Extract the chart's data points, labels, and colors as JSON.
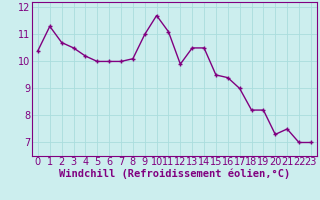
{
  "x": [
    0,
    1,
    2,
    3,
    4,
    5,
    6,
    7,
    8,
    9,
    10,
    11,
    12,
    13,
    14,
    15,
    16,
    17,
    18,
    19,
    20,
    21,
    22,
    23
  ],
  "y": [
    10.4,
    11.3,
    10.7,
    10.5,
    10.2,
    10.0,
    10.0,
    10.0,
    10.1,
    11.0,
    11.7,
    11.1,
    9.9,
    10.5,
    10.5,
    9.5,
    9.4,
    9.0,
    8.2,
    8.2,
    7.3,
    7.5,
    7.0,
    7.0
  ],
  "line_color": "#800080",
  "marker": "+",
  "bg_color": "#cceeee",
  "grid_color": "#aadddd",
  "xlabel": "Windchill (Refroidissement éolien,°C)",
  "xlim": [
    -0.5,
    23.5
  ],
  "ylim": [
    6.5,
    12.2
  ],
  "yticks": [
    7,
    8,
    9,
    10,
    11,
    12
  ],
  "xticks": [
    0,
    1,
    2,
    3,
    4,
    5,
    6,
    7,
    8,
    9,
    10,
    11,
    12,
    13,
    14,
    15,
    16,
    17,
    18,
    19,
    20,
    21,
    22,
    23
  ],
  "xlabel_fontsize": 7.5,
  "tick_fontsize": 7.0,
  "line_width": 1.0,
  "marker_size": 3.5
}
